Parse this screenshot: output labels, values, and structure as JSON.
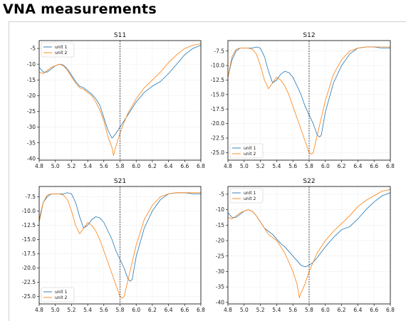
{
  "page_title": "VNA measurements",
  "colors": {
    "unit1": "#1f77b4",
    "unit2": "#ff7f0e",
    "grid": "#e4e4e4",
    "marker": "#000000"
  },
  "chart_data": [
    {
      "type": "line",
      "title": "S11",
      "xlim": [
        4.8,
        6.8
      ],
      "ylim": [
        -40.5,
        -2.5
      ],
      "xticks": [
        4.8,
        5.0,
        5.2,
        5.4,
        5.6,
        5.8,
        6.0,
        6.2,
        6.4,
        6.6,
        6.8
      ],
      "yticks": [
        -5,
        -10,
        -15,
        -20,
        -25,
        -30,
        -35,
        -40
      ],
      "grid": true,
      "legend_position": "top-left",
      "vline_x": 5.8,
      "series": [
        {
          "name": "unit 1",
          "x": [
            4.8,
            4.85,
            4.9,
            4.95,
            5.0,
            5.05,
            5.1,
            5.15,
            5.2,
            5.25,
            5.3,
            5.35,
            5.4,
            5.45,
            5.5,
            5.55,
            5.6,
            5.65,
            5.7,
            5.72,
            5.75,
            5.8,
            5.85,
            5.9,
            6.0,
            6.1,
            6.2,
            6.3,
            6.4,
            6.5,
            6.6,
            6.7,
            6.8
          ],
          "y": [
            -11,
            -12.5,
            -12.5,
            -11.5,
            -10.5,
            -10,
            -10.3,
            -11.5,
            -13.5,
            -15.5,
            -17,
            -17.5,
            -18.5,
            -19.5,
            -21,
            -23,
            -27,
            -31,
            -33.5,
            -33,
            -32,
            -30,
            -28,
            -26,
            -22,
            -19,
            -17,
            -15.5,
            -13,
            -10,
            -7,
            -5,
            -4
          ]
        },
        {
          "name": "unit 2",
          "x": [
            4.8,
            4.85,
            4.9,
            4.95,
            5.0,
            5.05,
            5.1,
            5.15,
            5.2,
            5.25,
            5.3,
            5.35,
            5.4,
            5.45,
            5.5,
            5.55,
            5.6,
            5.65,
            5.7,
            5.72,
            5.75,
            5.8,
            5.85,
            5.9,
            6.0,
            6.1,
            6.2,
            6.3,
            6.4,
            6.5,
            6.6,
            6.7,
            6.8
          ],
          "y": [
            -12.5,
            -13,
            -12,
            -11,
            -10.5,
            -10,
            -10.5,
            -12,
            -14,
            -16,
            -17.5,
            -18,
            -19,
            -20,
            -22,
            -24.5,
            -28,
            -33,
            -36.5,
            -39,
            -36,
            -32,
            -28.5,
            -25.5,
            -21,
            -17.5,
            -15,
            -12.5,
            -9.5,
            -7,
            -5,
            -4,
            -3.5
          ]
        }
      ]
    },
    {
      "type": "line",
      "title": "S12",
      "xlim": [
        4.8,
        6.8
      ],
      "ylim": [
        -26.3,
        -5.7
      ],
      "xticks": [
        4.8,
        5.0,
        5.2,
        5.4,
        5.6,
        5.8,
        6.0,
        6.2,
        6.4,
        6.6,
        6.8
      ],
      "yticks": [
        -7.5,
        -10.0,
        -12.5,
        -15.0,
        -17.5,
        -20.0,
        -22.5,
        -25.0
      ],
      "grid": true,
      "legend_position": "bottom-left",
      "vline_x": 5.8,
      "series": [
        {
          "name": "unit 1",
          "x": [
            4.8,
            4.85,
            4.9,
            4.95,
            5.0,
            5.1,
            5.15,
            5.2,
            5.25,
            5.3,
            5.35,
            5.4,
            5.45,
            5.5,
            5.55,
            5.6,
            5.65,
            5.7,
            5.75,
            5.8,
            5.85,
            5.9,
            5.93,
            5.95,
            6.0,
            6.1,
            6.2,
            6.3,
            6.4,
            6.5,
            6.6,
            6.7,
            6.8
          ],
          "y": [
            -12,
            -9,
            -7.5,
            -7,
            -7,
            -7,
            -6.8,
            -7,
            -8.5,
            -11,
            -13,
            -12.5,
            -11.5,
            -11,
            -11.2,
            -12,
            -13.5,
            -15,
            -17,
            -18.5,
            -20,
            -22,
            -22.3,
            -22,
            -18,
            -13,
            -10,
            -8,
            -7,
            -6.8,
            -6.8,
            -7,
            -7
          ]
        },
        {
          "name": "unit 2",
          "x": [
            4.8,
            4.85,
            4.9,
            4.95,
            5.0,
            5.05,
            5.1,
            5.15,
            5.2,
            5.25,
            5.3,
            5.35,
            5.4,
            5.45,
            5.5,
            5.55,
            5.6,
            5.65,
            5.7,
            5.75,
            5.8,
            5.83,
            5.85,
            5.9,
            6.0,
            6.1,
            6.2,
            6.3,
            6.4,
            6.5,
            6.6,
            6.7,
            6.8
          ],
          "y": [
            -12,
            -8.5,
            -7.2,
            -7,
            -7,
            -7,
            -7.2,
            -8,
            -10,
            -12.5,
            -14,
            -13,
            -12,
            -12.5,
            -13.5,
            -15,
            -17,
            -19,
            -21,
            -23,
            -25,
            -25.3,
            -25,
            -22,
            -16,
            -11.5,
            -9,
            -7.5,
            -7,
            -6.8,
            -6.8,
            -6.8,
            -6.8
          ]
        }
      ]
    },
    {
      "type": "line",
      "title": "S21",
      "xlim": [
        4.8,
        6.8
      ],
      "ylim": [
        -26.3,
        -5.7
      ],
      "xticks": [
        4.8,
        5.0,
        5.2,
        5.4,
        5.6,
        5.8,
        6.0,
        6.2,
        6.4,
        6.6,
        6.8
      ],
      "yticks": [
        -7.5,
        -10.0,
        -12.5,
        -15.0,
        -17.5,
        -20.0,
        -22.5,
        -25.0
      ],
      "grid": true,
      "legend_position": "bottom-left",
      "vline_x": 5.8,
      "series": [
        {
          "name": "unit 1",
          "x": [
            4.8,
            4.85,
            4.9,
            4.95,
            5.0,
            5.1,
            5.15,
            5.2,
            5.25,
            5.3,
            5.35,
            5.4,
            5.45,
            5.5,
            5.55,
            5.6,
            5.65,
            5.7,
            5.75,
            5.8,
            5.85,
            5.9,
            5.93,
            5.95,
            6.0,
            6.1,
            6.2,
            6.3,
            6.4,
            6.5,
            6.6,
            6.7,
            6.8
          ],
          "y": [
            -11.5,
            -8.5,
            -7.5,
            -7,
            -7,
            -7,
            -6.8,
            -7,
            -8.5,
            -11,
            -13,
            -12.5,
            -11.5,
            -11,
            -11.2,
            -12,
            -13.5,
            -15,
            -17,
            -18.5,
            -20,
            -22,
            -22.3,
            -22,
            -18,
            -13,
            -10,
            -8,
            -7,
            -6.8,
            -6.8,
            -7,
            -7
          ]
        },
        {
          "name": "unit 2",
          "x": [
            4.8,
            4.85,
            4.9,
            4.95,
            5.0,
            5.05,
            5.1,
            5.15,
            5.2,
            5.25,
            5.3,
            5.35,
            5.4,
            5.45,
            5.5,
            5.55,
            5.6,
            5.65,
            5.7,
            5.75,
            5.8,
            5.83,
            5.85,
            5.9,
            6.0,
            6.1,
            6.2,
            6.3,
            6.4,
            6.5,
            6.6,
            6.7,
            6.8
          ],
          "y": [
            -12,
            -8.5,
            -7.2,
            -7,
            -7,
            -7,
            -7.2,
            -8,
            -10,
            -12.5,
            -14,
            -13,
            -12,
            -12.5,
            -13.5,
            -15,
            -17,
            -19,
            -21,
            -23,
            -25,
            -25.3,
            -25,
            -22,
            -16,
            -11.5,
            -9,
            -7.5,
            -7,
            -6.8,
            -6.8,
            -6.8,
            -6.8
          ]
        }
      ]
    },
    {
      "type": "line",
      "title": "S22",
      "xlim": [
        4.8,
        6.8
      ],
      "ylim": [
        -40.5,
        -2.5
      ],
      "xticks": [
        4.8,
        5.0,
        5.2,
        5.4,
        5.6,
        5.8,
        6.0,
        6.2,
        6.4,
        6.6,
        6.8
      ],
      "yticks": [
        -5,
        -10,
        -15,
        -20,
        -25,
        -30,
        -35,
        -40
      ],
      "grid": true,
      "legend_position": "top-left",
      "vline_x": 5.8,
      "series": [
        {
          "name": "unit 1",
          "x": [
            4.8,
            4.85,
            4.9,
            4.95,
            5.0,
            5.05,
            5.1,
            5.15,
            5.2,
            5.25,
            5.3,
            5.35,
            5.4,
            5.45,
            5.5,
            5.55,
            5.6,
            5.65,
            5.7,
            5.75,
            5.8,
            5.85,
            5.9,
            6.0,
            6.1,
            6.2,
            6.3,
            6.4,
            6.5,
            6.6,
            6.7,
            6.8
          ],
          "y": [
            -11,
            -12.5,
            -12.5,
            -11.5,
            -10.5,
            -10,
            -10.5,
            -12,
            -14,
            -16,
            -17,
            -18,
            -19.5,
            -21,
            -22,
            -23.5,
            -25,
            -26.5,
            -28,
            -28.5,
            -28,
            -27,
            -25.5,
            -22,
            -19,
            -16.5,
            -15.5,
            -13,
            -10,
            -7.5,
            -5.5,
            -4.5
          ]
        },
        {
          "name": "unit 2",
          "x": [
            4.8,
            4.85,
            4.9,
            4.95,
            5.0,
            5.05,
            5.1,
            5.15,
            5.2,
            5.25,
            5.3,
            5.35,
            5.4,
            5.45,
            5.5,
            5.55,
            5.6,
            5.65,
            5.68,
            5.7,
            5.75,
            5.8,
            5.85,
            5.9,
            6.0,
            6.1,
            6.2,
            6.3,
            6.4,
            6.5,
            6.6,
            6.7,
            6.8
          ],
          "y": [
            -12.5,
            -13,
            -12,
            -11,
            -10.5,
            -10,
            -10.5,
            -12,
            -14,
            -16,
            -18,
            -19,
            -20,
            -22,
            -24,
            -27,
            -30,
            -34,
            -38.5,
            -37,
            -34,
            -30,
            -27,
            -24,
            -20,
            -17,
            -14.5,
            -12,
            -9,
            -7,
            -5.5,
            -4,
            -3.5
          ]
        }
      ]
    }
  ]
}
